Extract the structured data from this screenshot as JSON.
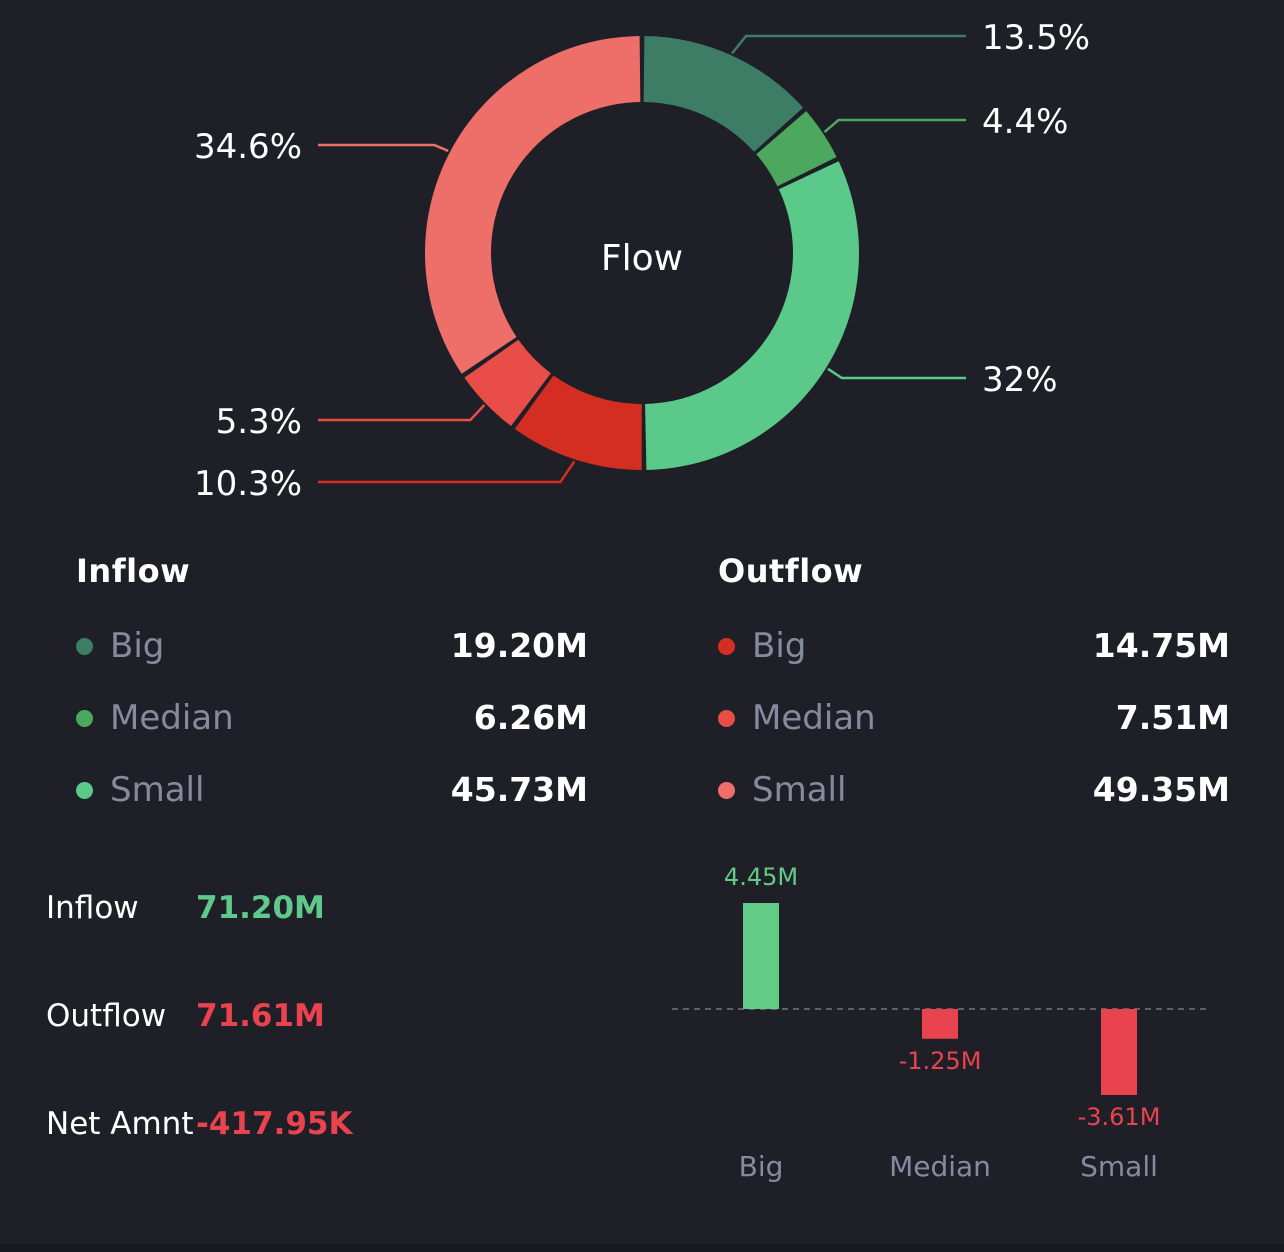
{
  "donut": {
    "center_label": "Flow"
  },
  "chart_data": [
    {
      "type": "pie",
      "center_label": "Flow",
      "slices": [
        {
          "label": "13.5%",
          "value": 13.5,
          "color": "#3e7d65"
        },
        {
          "label": "4.4%",
          "value": 4.4,
          "color": "#4ca85e"
        },
        {
          "label": "32%",
          "value": 32.0,
          "color": "#5ac98a"
        },
        {
          "label": "10.3%",
          "value": 10.3,
          "color": "#d42e22"
        },
        {
          "label": "5.3%",
          "value": 5.3,
          "color": "#e84d47"
        },
        {
          "label": "34.6%",
          "value": 34.6,
          "color": "#ee6e6a"
        }
      ]
    },
    {
      "type": "bar",
      "categories": [
        "Big",
        "Median",
        "Small"
      ],
      "values": [
        4.45,
        -1.25,
        -3.61
      ],
      "value_labels": [
        "4.45M",
        "-1.25M",
        "-3.61M"
      ],
      "unit": "M",
      "colors": {
        "positive": "#62cc86",
        "negative": "#e9434f"
      }
    }
  ],
  "inflow": {
    "title": "Inflow",
    "rows": [
      {
        "label": "Big",
        "value": "19.20M",
        "color": "#3e7d65"
      },
      {
        "label": "Median",
        "value": "6.26M",
        "color": "#4ca85e"
      },
      {
        "label": "Small",
        "value": "45.73M",
        "color": "#5ac98a"
      }
    ]
  },
  "outflow": {
    "title": "Outflow",
    "rows": [
      {
        "label": "Big",
        "value": "14.75M",
        "color": "#d42e22"
      },
      {
        "label": "Median",
        "value": "7.51M",
        "color": "#e84d47"
      },
      {
        "label": "Small",
        "value": "49.35M",
        "color": "#ee6e6a"
      }
    ]
  },
  "totals": {
    "inflow_label": "Inflow",
    "inflow_value": "71.20M",
    "outflow_label": "Outflow",
    "outflow_value": "71.61M",
    "net_label": "Net Amnt",
    "net_value": "-417.95K",
    "colors": {
      "inflow": "#5ec98a",
      "outflow": "#e9434f",
      "net": "#e9434f"
    }
  }
}
